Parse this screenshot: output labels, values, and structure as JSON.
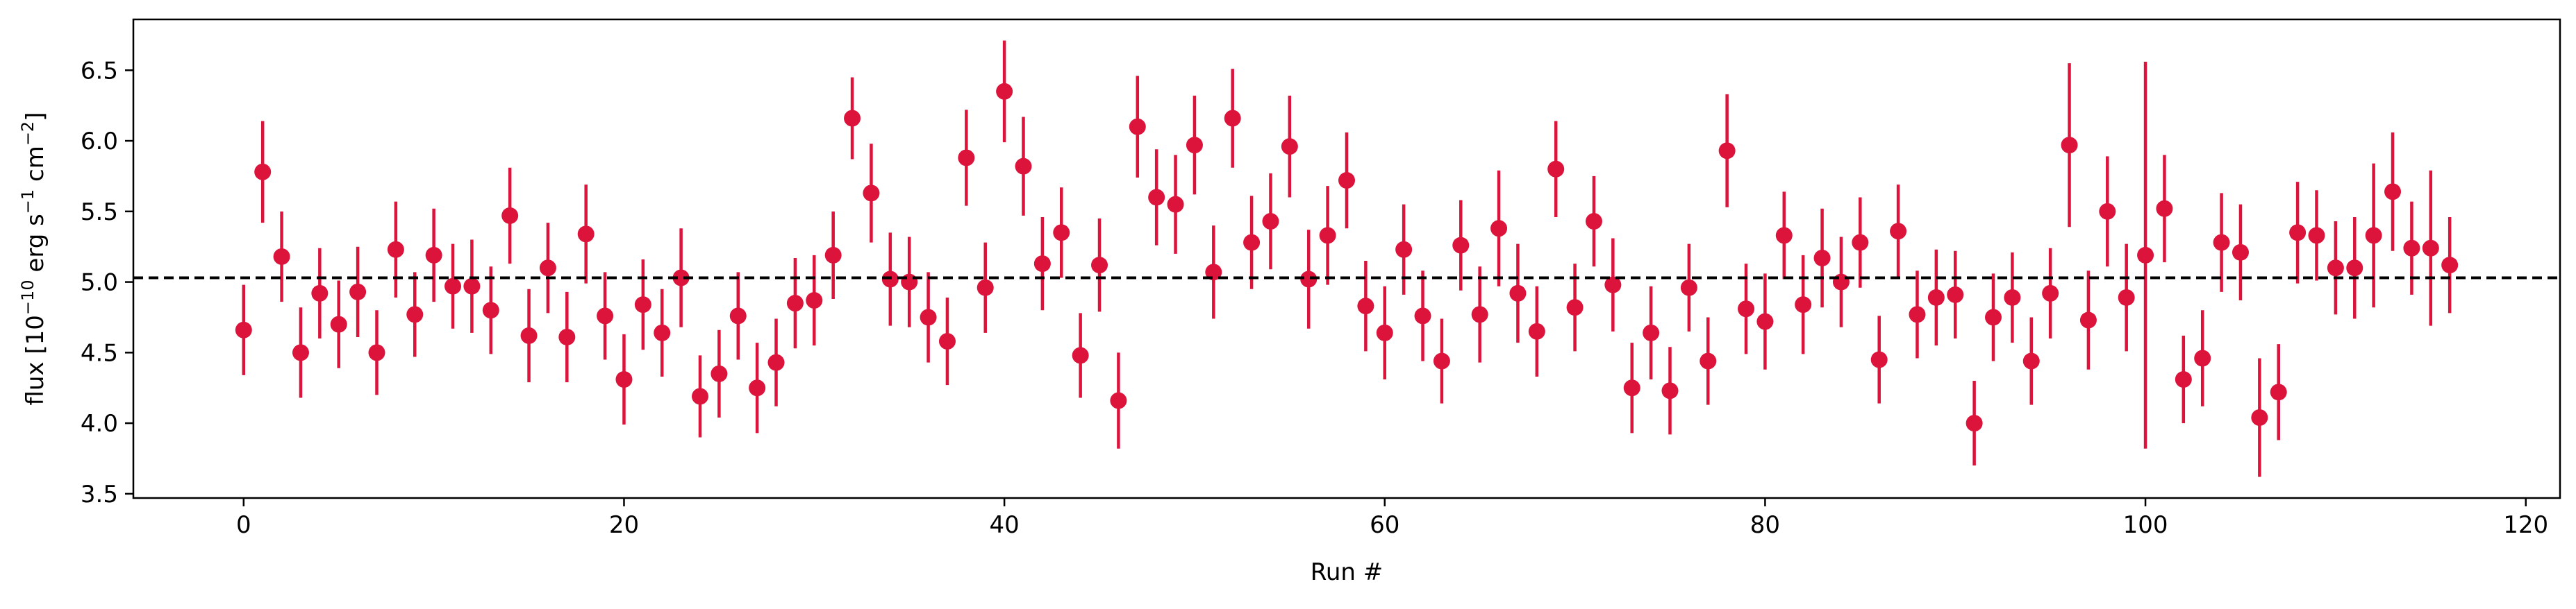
{
  "chart_data": {
    "type": "scatter",
    "xlabel": "Run #",
    "ylabel": {
      "prefix": "flux [10",
      "exp1": "−10",
      "mid1": " erg s",
      "exp2": "−1",
      "mid2": " cm",
      "exp3": "−2",
      "suffix": "]"
    },
    "xlim": [
      -5.8,
      121.8
    ],
    "ylim": [
      3.47,
      6.86
    ],
    "xticks": [
      0,
      20,
      40,
      60,
      80,
      100,
      120
    ],
    "yticks": [
      3.5,
      4.0,
      4.5,
      5.0,
      5.5,
      6.0,
      6.5
    ],
    "xtick_labels": [
      "0",
      "20",
      "40",
      "60",
      "80",
      "100",
      "120"
    ],
    "ytick_labels": [
      "3.5",
      "4.0",
      "4.5",
      "5.0",
      "5.5",
      "6.0",
      "6.5"
    ],
    "reference_line": {
      "y": 5.03,
      "style": "dashed",
      "color": "#000000"
    },
    "marker_color": "#dc143c",
    "grid": false,
    "series": [
      {
        "x": [
          0,
          1,
          2,
          3,
          4,
          5,
          6,
          7,
          8,
          9,
          10,
          11,
          12,
          13,
          14,
          15,
          16,
          17,
          18,
          19,
          20,
          21,
          22,
          23,
          24,
          25,
          26,
          27,
          28,
          29,
          30,
          31,
          32,
          33,
          34,
          35,
          36,
          37,
          38,
          39,
          40,
          41,
          42,
          43,
          44,
          45,
          46,
          47,
          48,
          49,
          50,
          51,
          52,
          53,
          54,
          55,
          56,
          57,
          58,
          59,
          60,
          61,
          62,
          63,
          64,
          65,
          66,
          67,
          68,
          69,
          70,
          71,
          72,
          73,
          74,
          75,
          76,
          77,
          78,
          79,
          80,
          81,
          82,
          83,
          84,
          85,
          86,
          87,
          88,
          89,
          90,
          91,
          92,
          93,
          94,
          95,
          96,
          97,
          98,
          99,
          100,
          101,
          102,
          103,
          104,
          105,
          106,
          107,
          108,
          109,
          110,
          111,
          112,
          113,
          114,
          115,
          116
        ],
        "y": [
          4.66,
          5.78,
          5.18,
          4.5,
          4.92,
          4.7,
          4.93,
          4.5,
          5.23,
          4.77,
          5.19,
          4.97,
          4.97,
          4.8,
          5.47,
          4.62,
          5.1,
          4.61,
          5.34,
          4.76,
          4.31,
          4.84,
          4.64,
          5.03,
          4.19,
          4.35,
          4.76,
          4.25,
          4.43,
          4.85,
          4.87,
          5.19,
          6.16,
          5.63,
          5.02,
          5.0,
          4.75,
          4.58,
          5.88,
          4.96,
          6.35,
          5.82,
          5.13,
          5.35,
          4.48,
          5.12,
          4.16,
          6.1,
          5.6,
          5.55,
          5.97,
          5.07,
          6.16,
          5.28,
          5.43,
          5.96,
          5.02,
          5.33,
          5.72,
          4.83,
          4.64,
          5.23,
          4.76,
          4.44,
          5.26,
          4.77,
          5.38,
          4.92,
          4.65,
          5.8,
          4.82,
          5.43,
          4.98,
          4.25,
          4.64,
          4.23,
          4.96,
          4.44,
          5.93,
          4.81,
          4.72,
          5.33,
          4.84,
          5.17,
          5.0,
          5.28,
          4.45,
          5.36,
          4.77,
          4.89,
          4.91,
          4.0,
          4.75,
          4.89,
          4.44,
          4.92,
          5.97,
          4.73,
          5.5,
          4.89,
          5.19,
          5.52,
          4.31,
          4.46,
          5.28,
          5.21,
          4.04,
          4.22,
          5.35,
          5.33,
          5.1,
          5.1,
          5.33,
          5.64,
          5.24,
          5.24,
          5.12
        ],
        "yerr": [
          0.32,
          0.36,
          0.32,
          0.32,
          0.32,
          0.31,
          0.32,
          0.3,
          0.34,
          0.3,
          0.33,
          0.3,
          0.33,
          0.31,
          0.34,
          0.33,
          0.32,
          0.32,
          0.35,
          0.31,
          0.32,
          0.32,
          0.31,
          0.35,
          0.29,
          0.31,
          0.31,
          0.32,
          0.31,
          0.32,
          0.32,
          0.31,
          0.29,
          0.35,
          0.33,
          0.32,
          0.32,
          0.31,
          0.34,
          0.32,
          0.36,
          0.35,
          0.33,
          0.32,
          0.3,
          0.33,
          0.34,
          0.36,
          0.34,
          0.35,
          0.35,
          0.33,
          0.35,
          0.33,
          0.34,
          0.36,
          0.35,
          0.35,
          0.34,
          0.32,
          0.33,
          0.32,
          0.32,
          0.3,
          0.32,
          0.34,
          0.41,
          0.35,
          0.32,
          0.34,
          0.31,
          0.32,
          0.33,
          0.32,
          0.33,
          0.31,
          0.31,
          0.31,
          0.4,
          0.32,
          0.34,
          0.31,
          0.35,
          0.35,
          0.32,
          0.32,
          0.31,
          0.33,
          0.31,
          0.34,
          0.31,
          0.3,
          0.31,
          0.32,
          0.31,
          0.32,
          0.58,
          0.35,
          0.39,
          0.38,
          1.37,
          0.38,
          0.31,
          0.34,
          0.35,
          0.34,
          0.42,
          0.34,
          0.36,
          0.32,
          0.33,
          0.36,
          0.51,
          0.42,
          0.33,
          0.55,
          0.34
        ]
      }
    ]
  }
}
